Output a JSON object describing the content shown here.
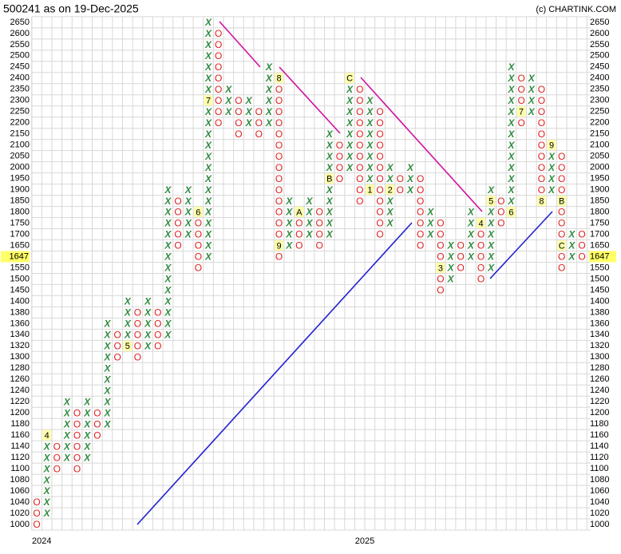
{
  "chart_data": {
    "type": "point-figure",
    "title": "500241 as on 19-Dec-2025",
    "credit": "(c) CHARTINK.COM",
    "last_price": 1647,
    "boxes": [
      1000,
      1020,
      1040,
      1060,
      1080,
      1100,
      1120,
      1140,
      1160,
      1180,
      1200,
      1220,
      1240,
      1260,
      1280,
      1300,
      1320,
      1340,
      1360,
      1380,
      1400,
      1450,
      1500,
      1550,
      1600,
      1650,
      1700,
      1750,
      1800,
      1850,
      1900,
      1950,
      2000,
      2050,
      2100,
      2150,
      2200,
      2250,
      2300,
      2350,
      2400,
      2450,
      2500,
      2550,
      2600,
      2650
    ],
    "yticks": [
      1000,
      1020,
      1040,
      1060,
      1080,
      1100,
      1120,
      1140,
      1160,
      1180,
      1200,
      1220,
      1240,
      1260,
      1280,
      1300,
      1320,
      1340,
      1360,
      1380,
      1400,
      1450,
      1500,
      1550,
      1650,
      1700,
      1750,
      1800,
      1850,
      1900,
      1950,
      2000,
      2050,
      2100,
      2150,
      2200,
      2250,
      2300,
      2350,
      2400,
      2450,
      2500,
      2550,
      2600,
      2650
    ],
    "year_labels": [
      {
        "column": 0,
        "label": "2024"
      },
      {
        "column": 32,
        "label": "2025"
      }
    ],
    "columns": [
      {
        "type": "O",
        "low": 1000,
        "high": 1040
      },
      {
        "type": "X",
        "low": 1020,
        "high": 1160,
        "markers": [
          {
            "box": 1160,
            "label": "4"
          }
        ]
      },
      {
        "type": "O",
        "low": 1100,
        "high": 1140
      },
      {
        "type": "X",
        "low": 1120,
        "high": 1220
      },
      {
        "type": "O",
        "low": 1100,
        "high": 1200
      },
      {
        "type": "X",
        "low": 1120,
        "high": 1220
      },
      {
        "type": "O",
        "low": 1160,
        "high": 1200
      },
      {
        "type": "X",
        "low": 1180,
        "high": 1360
      },
      {
        "type": "O",
        "low": 1300,
        "high": 1340
      },
      {
        "type": "X",
        "low": 1320,
        "high": 1400,
        "markers": [
          {
            "box": 1320,
            "label": "5"
          }
        ]
      },
      {
        "type": "O",
        "low": 1300,
        "high": 1380
      },
      {
        "type": "X",
        "low": 1320,
        "high": 1400
      },
      {
        "type": "O",
        "low": 1320,
        "high": 1380
      },
      {
        "type": "X",
        "low": 1340,
        "high": 1900
      },
      {
        "type": "O",
        "low": 1650,
        "high": 1850
      },
      {
        "type": "X",
        "low": 1700,
        "high": 1900
      },
      {
        "type": "O",
        "low": 1550,
        "high": 1800,
        "markers": [
          {
            "box": 1800,
            "label": "6"
          }
        ]
      },
      {
        "type": "X",
        "low": 1600,
        "high": 2650,
        "markers": [
          {
            "box": 2300,
            "label": "7"
          }
        ]
      },
      {
        "type": "O",
        "low": 2200,
        "high": 2600
      },
      {
        "type": "X",
        "low": 2250,
        "high": 2350
      },
      {
        "type": "O",
        "low": 2150,
        "high": 2300
      },
      {
        "type": "X",
        "low": 2200,
        "high": 2300
      },
      {
        "type": "O",
        "low": 2150,
        "high": 2250
      },
      {
        "type": "X",
        "low": 2200,
        "high": 2450
      },
      {
        "type": "O",
        "low": 1600,
        "high": 2400,
        "markers": [
          {
            "box": 2400,
            "label": "8"
          },
          {
            "box": 1650,
            "label": "9"
          }
        ]
      },
      {
        "type": "X",
        "low": 1650,
        "high": 1850
      },
      {
        "type": "O",
        "low": 1650,
        "high": 1800,
        "markers": [
          {
            "box": 1800,
            "label": "A"
          }
        ]
      },
      {
        "type": "X",
        "low": 1700,
        "high": 1850
      },
      {
        "type": "O",
        "low": 1650,
        "high": 1800
      },
      {
        "type": "X",
        "low": 1700,
        "high": 2150,
        "markers": [
          {
            "box": 1950,
            "label": "B"
          }
        ]
      },
      {
        "type": "O",
        "low": 1950,
        "high": 2100
      },
      {
        "type": "X",
        "low": 2000,
        "high": 2400,
        "markers": [
          {
            "box": 2400,
            "label": "C"
          }
        ]
      },
      {
        "type": "O",
        "low": 1850,
        "high": 2350
      },
      {
        "type": "X",
        "low": 1900,
        "high": 2300,
        "markers": [
          {
            "box": 1900,
            "label": "1"
          }
        ]
      },
      {
        "type": "O",
        "low": 1700,
        "high": 2250
      },
      {
        "type": "X",
        "low": 1750,
        "high": 2000,
        "markers": [
          {
            "box": 1900,
            "label": "2"
          }
        ]
      },
      {
        "type": "O",
        "low": 1900,
        "high": 1950
      },
      {
        "type": "X",
        "low": 1900,
        "high": 2000
      },
      {
        "type": "O",
        "low": 1650,
        "high": 1950
      },
      {
        "type": "X",
        "low": 1700,
        "high": 1800
      },
      {
        "type": "O",
        "low": 1450,
        "high": 1750,
        "markers": [
          {
            "box": 1550,
            "label": "3"
          }
        ]
      },
      {
        "type": "X",
        "low": 1500,
        "high": 1650
      },
      {
        "type": "O",
        "low": 1550,
        "high": 1650
      },
      {
        "type": "X",
        "low": 1600,
        "high": 1800
      },
      {
        "type": "O",
        "low": 1500,
        "high": 1750,
        "markers": [
          {
            "box": 1750,
            "label": "4"
          }
        ]
      },
      {
        "type": "X",
        "low": 1550,
        "high": 1900,
        "markers": [
          {
            "box": 1850,
            "label": "5"
          }
        ]
      },
      {
        "type": "O",
        "low": 1750,
        "high": 1850
      },
      {
        "type": "X",
        "low": 1800,
        "high": 2450,
        "markers": [
          {
            "box": 1800,
            "label": "6"
          }
        ]
      },
      {
        "type": "O",
        "low": 2200,
        "high": 2400,
        "markers": [
          {
            "box": 2250,
            "label": "7"
          }
        ]
      },
      {
        "type": "X",
        "low": 2250,
        "high": 2400
      },
      {
        "type": "O",
        "low": 1850,
        "high": 2350,
        "markers": [
          {
            "box": 1850,
            "label": "8"
          }
        ]
      },
      {
        "type": "X",
        "low": 1900,
        "high": 2100,
        "markers": [
          {
            "box": 2100,
            "label": "9"
          }
        ]
      },
      {
        "type": "O",
        "low": 1550,
        "high": 2050,
        "markers": [
          {
            "box": 1850,
            "label": "B"
          },
          {
            "box": 1650,
            "label": "C"
          }
        ]
      },
      {
        "type": "X",
        "low": 1600,
        "high": 1700
      },
      {
        "type": "O",
        "low": 1600,
        "high": 1700
      }
    ]
  }
}
